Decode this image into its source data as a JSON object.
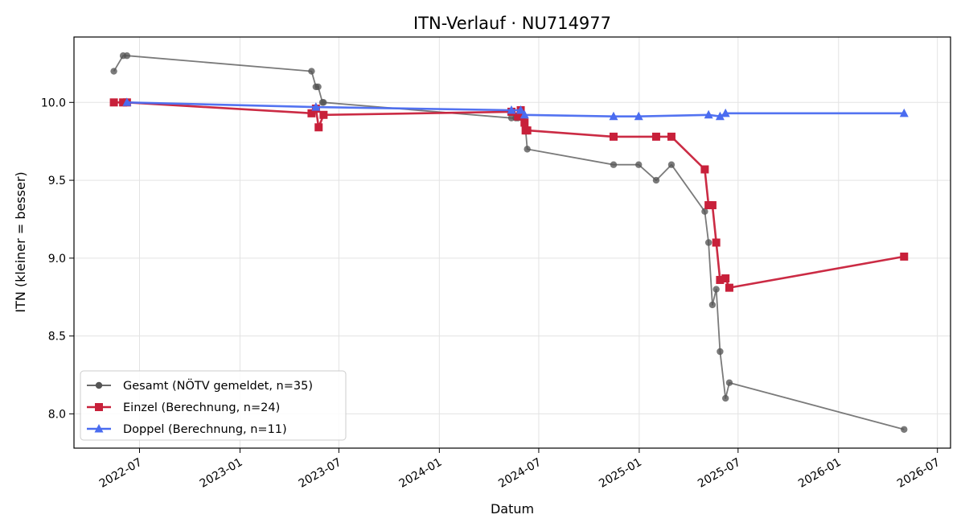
{
  "chart_data": {
    "type": "line",
    "title": "ITN-Verlauf · NU714977",
    "xlabel": "Datum",
    "ylabel": "ITN  (kleiner = besser)",
    "x_type": "date",
    "xlim": [
      "2022-03-03",
      "2026-07-25"
    ],
    "ylim": [
      7.78,
      10.42
    ],
    "x_ticks": [
      "2022-07-01",
      "2023-01-01",
      "2023-07-01",
      "2024-01-01",
      "2024-07-01",
      "2025-01-01",
      "2025-07-01",
      "2026-01-01",
      "2026-07-01"
    ],
    "x_tick_labels": [
      "2022-07",
      "2023-01",
      "2023-07",
      "2024-01",
      "2024-07",
      "2025-01",
      "2025-07",
      "2026-01",
      "2026-07"
    ],
    "y_ticks": [
      8.0,
      8.5,
      9.0,
      9.5,
      10.0
    ],
    "y_tick_labels": [
      "8.0",
      "8.5",
      "9.0",
      "9.5",
      "10.0"
    ],
    "grid": true,
    "legend_position": "lower-left",
    "series": [
      {
        "name": "Gesamt (NÖTV gemeldet, n=35)",
        "color": "#555555",
        "marker": "circle",
        "points": [
          [
            "2022-05-15",
            10.2
          ],
          [
            "2022-06-01",
            10.3
          ],
          [
            "2022-06-08",
            10.3
          ],
          [
            "2023-05-12",
            10.2
          ],
          [
            "2023-05-20",
            10.1
          ],
          [
            "2023-05-24",
            10.1
          ],
          [
            "2023-06-01",
            10.0
          ],
          [
            "2023-06-03",
            10.0
          ],
          [
            "2024-05-12",
            9.9
          ],
          [
            "2024-05-20",
            9.9
          ],
          [
            "2024-05-24",
            9.9
          ],
          [
            "2024-06-01",
            9.9
          ],
          [
            "2024-06-05",
            9.9
          ],
          [
            "2024-06-10",
            9.7
          ],
          [
            "2024-11-15",
            9.6
          ],
          [
            "2024-12-31",
            9.6
          ],
          [
            "2025-02-01",
            9.5
          ],
          [
            "2025-03-01",
            9.6
          ],
          [
            "2025-05-01",
            9.3
          ],
          [
            "2025-05-08",
            9.1
          ],
          [
            "2025-05-15",
            8.7
          ],
          [
            "2025-05-22",
            8.8
          ],
          [
            "2025-05-29",
            8.4
          ],
          [
            "2025-06-08",
            8.1
          ],
          [
            "2025-06-15",
            8.2
          ],
          [
            "2026-05-01",
            7.9
          ]
        ]
      },
      {
        "name": "Einzel (Berechnung, n=24)",
        "color": "#c8203a",
        "marker": "square",
        "points": [
          [
            "2022-05-15",
            10.0
          ],
          [
            "2022-06-01",
            10.0
          ],
          [
            "2022-06-08",
            10.0
          ],
          [
            "2023-05-12",
            9.93
          ],
          [
            "2023-05-20",
            9.96
          ],
          [
            "2023-05-25",
            9.84
          ],
          [
            "2023-06-03",
            9.92
          ],
          [
            "2024-05-12",
            9.94
          ],
          [
            "2024-05-24",
            9.91
          ],
          [
            "2024-05-29",
            9.95
          ],
          [
            "2024-06-05",
            9.87
          ],
          [
            "2024-06-07",
            9.82
          ],
          [
            "2024-06-10",
            9.82
          ],
          [
            "2024-11-15",
            9.78
          ],
          [
            "2025-02-01",
            9.78
          ],
          [
            "2025-03-01",
            9.78
          ],
          [
            "2025-05-01",
            9.57
          ],
          [
            "2025-05-08",
            9.34
          ],
          [
            "2025-05-15",
            9.34
          ],
          [
            "2025-05-22",
            9.1
          ],
          [
            "2025-05-29",
            8.86
          ],
          [
            "2025-06-08",
            8.87
          ],
          [
            "2025-06-15",
            8.81
          ],
          [
            "2026-05-01",
            9.01
          ]
        ]
      },
      {
        "name": "Doppel (Berechnung, n=11)",
        "color": "#4a6cf0",
        "marker": "triangle",
        "points": [
          [
            "2022-06-08",
            10.0
          ],
          [
            "2023-05-20",
            9.97
          ],
          [
            "2024-05-12",
            9.95
          ],
          [
            "2024-05-29",
            9.95
          ],
          [
            "2024-06-05",
            9.92
          ],
          [
            "2024-11-15",
            9.91
          ],
          [
            "2024-12-31",
            9.91
          ],
          [
            "2025-05-08",
            9.92
          ],
          [
            "2025-05-29",
            9.91
          ],
          [
            "2025-06-08",
            9.93
          ],
          [
            "2026-05-01",
            9.93
          ]
        ]
      }
    ]
  }
}
